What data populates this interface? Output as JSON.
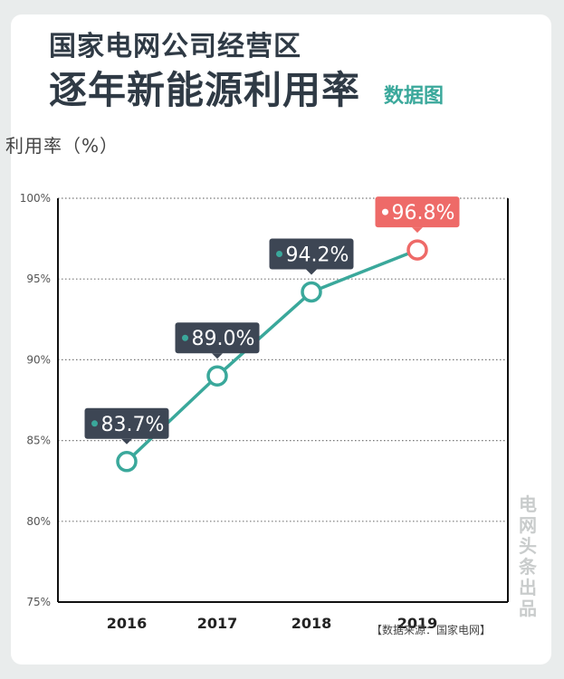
{
  "header": {
    "title_line1": "国家电网公司经营区",
    "title_line2": "逐年新能源利用率",
    "title_tag": "数据图"
  },
  "unit_label": "利用率（%）",
  "watermark": "电网头条出品",
  "source": "【数据来源：国家电网】",
  "colors": {
    "line": "#3aa89b",
    "label_bg": "#3d4654",
    "highlight": "#ee6a68",
    "title": "#2f3a45"
  },
  "chart_data": {
    "type": "line",
    "categories": [
      "2016",
      "2017",
      "2018",
      "2019"
    ],
    "values": [
      83.7,
      89.0,
      94.2,
      96.8
    ],
    "data_labels": [
      "83.7%",
      "89.0%",
      "94.2%",
      "96.8%"
    ],
    "highlight_index": 3,
    "ylabel": "利用率（%）",
    "ylim": [
      75,
      100
    ],
    "yticks": [
      75,
      80,
      85,
      90,
      95,
      100
    ],
    "ytick_labels": [
      "75%",
      "80%",
      "85%",
      "90%",
      "95%",
      "100%"
    ],
    "grid": "dotted-horizontal"
  }
}
